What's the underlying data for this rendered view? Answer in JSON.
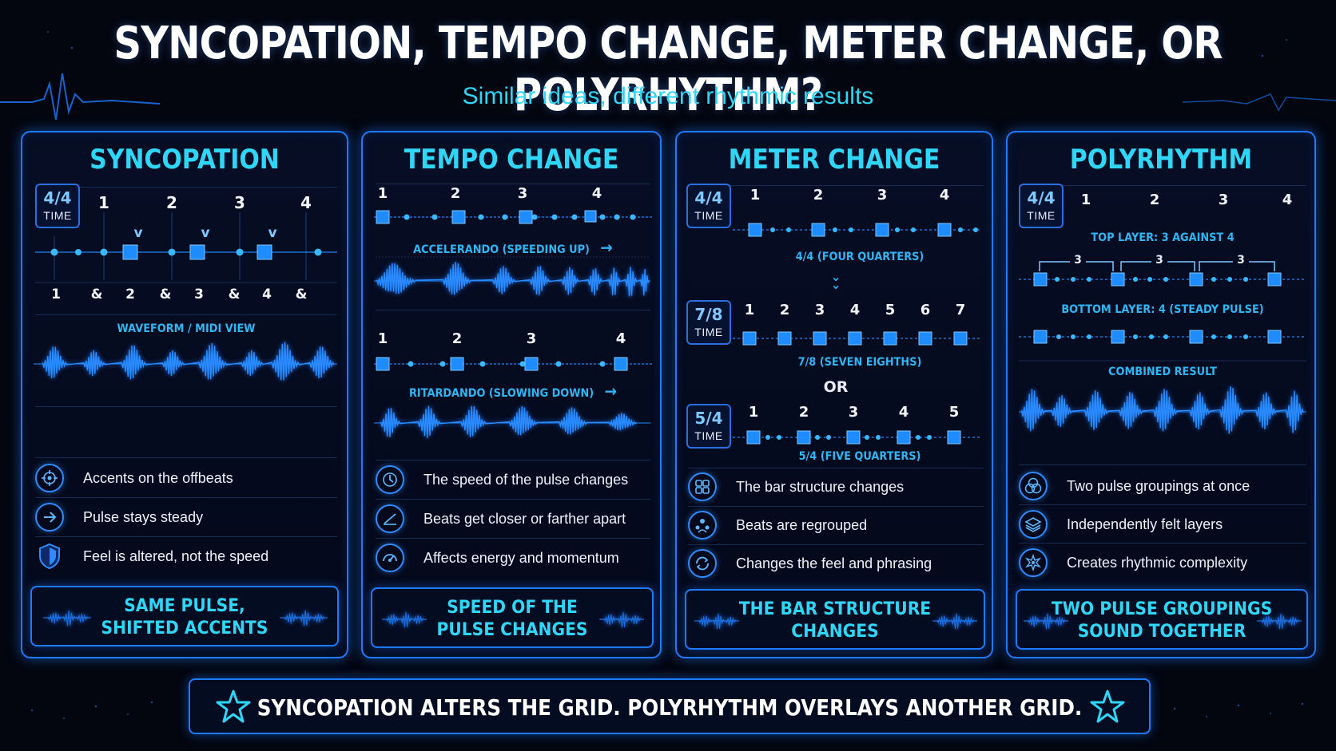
{
  "title": "SYNCOPATION, TEMPO CHANGE, METER CHANGE, OR POLYRHYTHM?",
  "subtitle": "Similar ideas, different rhythmic results",
  "colors": {
    "accent": "#2fd6f5",
    "node": "#1e8bff",
    "border": "#1e7bff",
    "background": "#03060f"
  },
  "panels": [
    {
      "title": "SYNCOPATION",
      "time": {
        "num": "4/4",
        "label": "TIME"
      },
      "beats": [
        "1",
        "2",
        "3",
        "4"
      ],
      "accent_marks": [
        "v",
        "v",
        "v"
      ],
      "subdivisions": [
        "1",
        "&",
        "2",
        "&",
        "3",
        "&",
        "4",
        "&"
      ],
      "view_label": "WAVEFORM / MIDI VIEW",
      "features": [
        {
          "icon": "target-icon",
          "text": "Accents on the offbeats"
        },
        {
          "icon": "arrow-right-icon",
          "text": "Pulse stays steady"
        },
        {
          "icon": "shield-icon",
          "text": "Feel is altered, not the speed"
        }
      ],
      "summary": [
        "SAME PULSE,",
        "SHIFTED ACCENTS"
      ]
    },
    {
      "title": "TEMPO CHANGE",
      "accel": {
        "beats": [
          "1",
          "2",
          "3",
          "4"
        ],
        "label": "ACCELERANDO (SPEEDING UP)",
        "arrow": "→"
      },
      "rit": {
        "beats": [
          "1",
          "2",
          "3",
          "4"
        ],
        "label": "RITARDANDO (SLOWING DOWN)",
        "arrow": "→"
      },
      "features": [
        {
          "icon": "clock-icon",
          "text": "The speed of the pulse changes"
        },
        {
          "icon": "slope-icon",
          "text": "Beats get closer or farther apart"
        },
        {
          "icon": "gauge-icon",
          "text": "Affects energy and momentum"
        }
      ],
      "summary": [
        "SPEED OF THE",
        "PULSE CHANGES"
      ]
    },
    {
      "title": "METER CHANGE",
      "m44": {
        "num": "4/4",
        "label": "TIME",
        "beats": [
          "1",
          "2",
          "3",
          "4"
        ],
        "caption": "4/4 (FOUR QUARTERS)"
      },
      "m78": {
        "num": "7/8",
        "label": "TIME",
        "beats": [
          "1",
          "2",
          "3",
          "4",
          "5",
          "6",
          "7"
        ],
        "caption": "7/8 (SEVEN EIGHTHS)"
      },
      "or": "OR",
      "m54": {
        "num": "5/4",
        "label": "TIME",
        "beats": [
          "1",
          "2",
          "3",
          "4",
          "5"
        ],
        "caption": "5/4 (FIVE QUARTERS)"
      },
      "features": [
        {
          "icon": "grid-icon",
          "text": "The bar structure changes"
        },
        {
          "icon": "group-icon",
          "text": "Beats are regrouped"
        },
        {
          "icon": "cycle-icon",
          "text": "Changes the feel and phrasing"
        }
      ],
      "summary": [
        "THE BAR STRUCTURE",
        "CHANGES"
      ]
    },
    {
      "title": "POLYRHYTHM",
      "time": {
        "num": "4/4",
        "label": "TIME"
      },
      "beats": [
        "1",
        "2",
        "3",
        "4"
      ],
      "top_label": "TOP LAYER: 3 AGAINST 4",
      "triplet_marks": [
        "3",
        "3",
        "3"
      ],
      "bottom_label": "BOTTOM LAYER: 4 (STEADY PULSE)",
      "combined_label": "COMBINED RESULT",
      "features": [
        {
          "icon": "venn-icon",
          "text": "Two pulse groupings at once"
        },
        {
          "icon": "layers-icon",
          "text": "Independently felt layers"
        },
        {
          "icon": "starburst-icon",
          "text": "Creates rhythmic complexity"
        }
      ],
      "summary": [
        "TWO PULSE GROUPINGS",
        "SOUND TOGETHER"
      ]
    }
  ],
  "bottom_banner": "SYNCOPATION ALTERS THE GRID.  POLYRHYTHM OVERLAYS ANOTHER GRID."
}
